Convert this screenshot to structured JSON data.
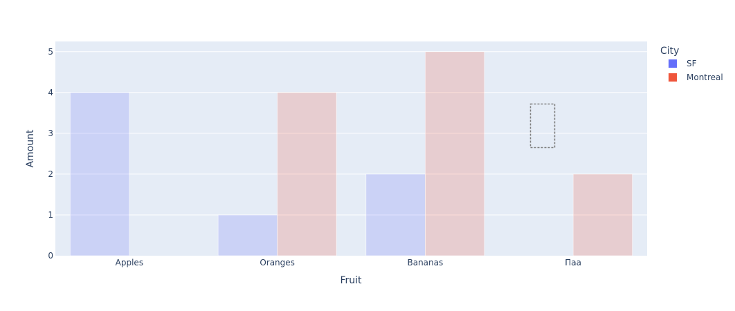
{
  "chart_data": {
    "type": "bar",
    "categories": [
      "Apples",
      "Oranges",
      "Bananas",
      "Паа"
    ],
    "series": [
      {
        "name": "SF",
        "values": [
          4,
          1,
          2,
          null
        ],
        "color": "#636efa"
      },
      {
        "name": "Montreal",
        "values": [
          null,
          4,
          5,
          2
        ],
        "color": "#ef553b"
      }
    ],
    "xlabel": "Fruit",
    "ylabel": "Amount",
    "ylim": [
      0,
      5.25
    ],
    "yticks": [
      0,
      1,
      2,
      3,
      4,
      5
    ],
    "grid": true,
    "legend": {
      "title": "City",
      "position": "top-right"
    },
    "plot_background": "#e5ecf6",
    "bar_opacity": 0.2
  }
}
